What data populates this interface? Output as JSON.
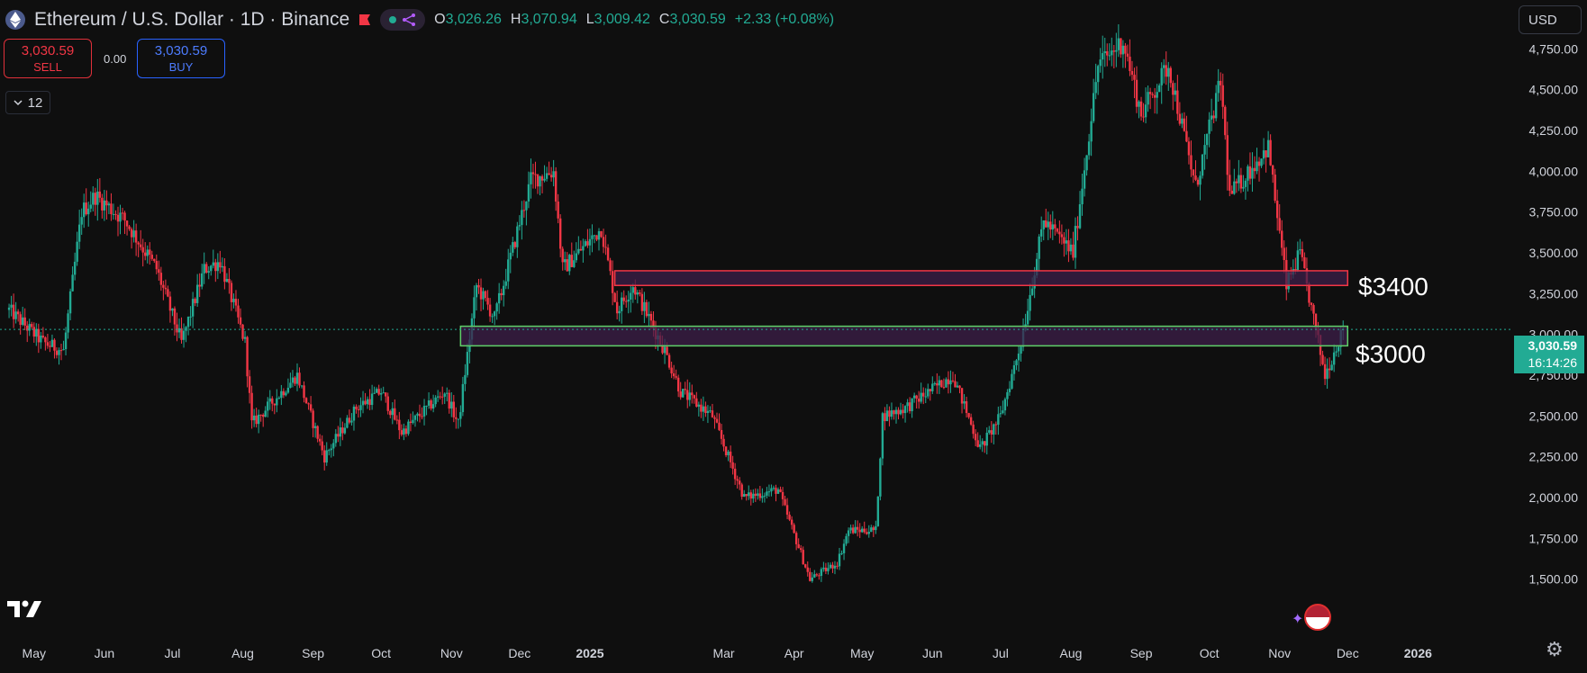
{
  "header": {
    "symbol_title": "Ethereum / U.S. Dollar · 1D · Binance",
    "ohlc": {
      "o_label": "O",
      "o": "3,026.26",
      "h_label": "H",
      "h": "3,070.94",
      "l_label": "L",
      "l": "3,009.42",
      "c_label": "C",
      "c": "3,030.59",
      "change": "+2.33 (+0.08%)"
    },
    "icons": [
      "ethereum-icon",
      "flag-icon",
      "share-icon"
    ]
  },
  "trade": {
    "sell_price": "3,030.59",
    "sell_label": "SELL",
    "spread": "0.00",
    "buy_price": "3,030.59",
    "buy_label": "BUY"
  },
  "indicators_toggle": {
    "count": "12"
  },
  "currency": "USD",
  "last_price_tag": {
    "price": "3,030.59",
    "countdown": "16:14:26"
  },
  "annotations": {
    "level_high": "$3400",
    "level_low": "$3000"
  },
  "colors": {
    "background": "#0f0f0f",
    "up": "#22ab94",
    "down": "#f23645",
    "zone_high_border": "#f23645",
    "zone_low_border": "#5fd068",
    "zone_fill": "#3d1f4a"
  },
  "chart_data": {
    "type": "candlestick",
    "title": "Ethereum / U.S. Dollar · 1D · Binance",
    "x_tick_labels": [
      "May",
      "Jun",
      "Jul",
      "Aug",
      "Sep",
      "Oct",
      "Nov",
      "Dec",
      "2025",
      "Mar",
      "Apr",
      "May",
      "Jun",
      "Jul",
      "Aug",
      "Sep",
      "Oct",
      "Nov",
      "Dec",
      "2026"
    ],
    "y_tick_labels": [
      "1,500.00",
      "1,750.00",
      "2,000.00",
      "2,250.00",
      "2,500.00",
      "2,750.00",
      "3,000.00",
      "3,250.00",
      "3,500.00",
      "3,750.00",
      "4,000.00",
      "4,250.00",
      "4,500.00",
      "4,750.00"
    ],
    "ylim": [
      1300,
      4950
    ],
    "close_anchors": [
      {
        "date": "2024-04-20",
        "close": 3150
      },
      {
        "date": "2024-05-05",
        "close": 2950
      },
      {
        "date": "2024-05-14",
        "close": 2900
      },
      {
        "date": "2024-05-22",
        "close": 3750
      },
      {
        "date": "2024-05-28",
        "close": 3850
      },
      {
        "date": "2024-06-10",
        "close": 3700
      },
      {
        "date": "2024-06-24",
        "close": 3400
      },
      {
        "date": "2024-07-05",
        "close": 2950
      },
      {
        "date": "2024-07-15",
        "close": 3400
      },
      {
        "date": "2024-07-22",
        "close": 3450
      },
      {
        "date": "2024-08-02",
        "close": 2950
      },
      {
        "date": "2024-08-05",
        "close": 2450
      },
      {
        "date": "2024-08-25",
        "close": 2750
      },
      {
        "date": "2024-09-06",
        "close": 2250
      },
      {
        "date": "2024-09-20",
        "close": 2550
      },
      {
        "date": "2024-10-01",
        "close": 2650
      },
      {
        "date": "2024-10-10",
        "close": 2400
      },
      {
        "date": "2024-10-29",
        "close": 2650
      },
      {
        "date": "2024-11-04",
        "close": 2450
      },
      {
        "date": "2024-11-12",
        "close": 3300
      },
      {
        "date": "2024-11-20",
        "close": 3100
      },
      {
        "date": "2024-12-06",
        "close": 3950
      },
      {
        "date": "2024-12-16",
        "close": 4000
      },
      {
        "date": "2024-12-20",
        "close": 3400
      },
      {
        "date": "2025-01-06",
        "close": 3650
      },
      {
        "date": "2025-01-13",
        "close": 3150
      },
      {
        "date": "2025-01-20",
        "close": 3300
      },
      {
        "date": "2025-02-03",
        "close": 2900
      },
      {
        "date": "2025-02-10",
        "close": 2650
      },
      {
        "date": "2025-02-24",
        "close": 2500
      },
      {
        "date": "2025-03-10",
        "close": 2000
      },
      {
        "date": "2025-03-25",
        "close": 2050
      },
      {
        "date": "2025-04-08",
        "close": 1500
      },
      {
        "date": "2025-04-20",
        "close": 1600
      },
      {
        "date": "2025-04-25",
        "close": 1800
      },
      {
        "date": "2025-05-07",
        "close": 1800
      },
      {
        "date": "2025-05-10",
        "close": 2500
      },
      {
        "date": "2025-05-20",
        "close": 2550
      },
      {
        "date": "2025-06-10",
        "close": 2750
      },
      {
        "date": "2025-06-22",
        "close": 2300
      },
      {
        "date": "2025-07-01",
        "close": 2500
      },
      {
        "date": "2025-07-10",
        "close": 2950
      },
      {
        "date": "2025-07-20",
        "close": 3700
      },
      {
        "date": "2025-08-02",
        "close": 3500
      },
      {
        "date": "2025-08-13",
        "close": 4650
      },
      {
        "date": "2025-08-24",
        "close": 4800
      },
      {
        "date": "2025-09-01",
        "close": 4350
      },
      {
        "date": "2025-09-13",
        "close": 4650
      },
      {
        "date": "2025-09-25",
        "close": 3900
      },
      {
        "date": "2025-10-06",
        "close": 4550
      },
      {
        "date": "2025-10-10",
        "close": 3850
      },
      {
        "date": "2025-10-27",
        "close": 4150
      },
      {
        "date": "2025-11-04",
        "close": 3300
      },
      {
        "date": "2025-11-10",
        "close": 3500
      },
      {
        "date": "2025-11-21",
        "close": 2750
      },
      {
        "date": "2025-11-29",
        "close": 3030.59
      }
    ],
    "zones": [
      {
        "label": "$3400",
        "low": 3300,
        "high": 3390,
        "from": "2025-01-12",
        "to": "2025-12-01"
      },
      {
        "label": "$3000",
        "low": 2930,
        "high": 3050,
        "from": "2024-11-05",
        "to": "2025-12-01"
      }
    ],
    "last_price": 3030.59
  }
}
